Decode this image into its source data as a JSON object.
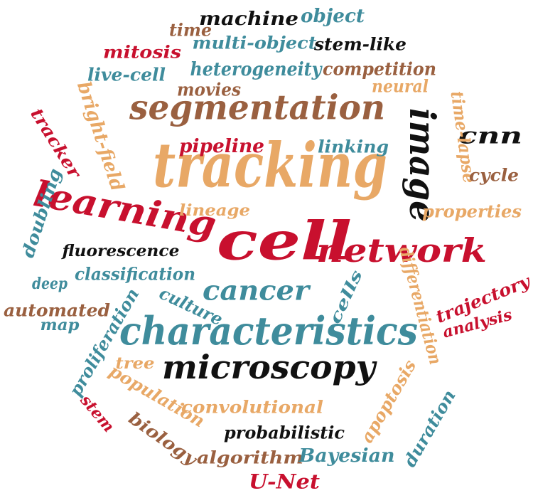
{
  "colors": {
    "red": "#c8102e",
    "blue": "#3f8c9c",
    "orange": "#e8a866",
    "brown": "#9a6040",
    "black": "#111111"
  },
  "words": [
    {
      "text": "tracking",
      "color": "orange"
    },
    {
      "text": "cell",
      "color": "red"
    },
    {
      "text": "segmentation",
      "color": "brown"
    },
    {
      "text": "characteristics",
      "color": "blue"
    },
    {
      "text": "microscopy",
      "color": "black"
    },
    {
      "text": "learning",
      "color": "red"
    },
    {
      "text": "network",
      "color": "red"
    },
    {
      "text": "image",
      "color": "black"
    },
    {
      "text": "cancer",
      "color": "blue"
    },
    {
      "text": "cnn",
      "color": "black"
    },
    {
      "text": "machine",
      "color": "black"
    },
    {
      "text": "object",
      "color": "blue"
    },
    {
      "text": "time",
      "color": "brown"
    },
    {
      "text": "multi-object",
      "color": "blue"
    },
    {
      "text": "stem-like",
      "color": "black"
    },
    {
      "text": "mitosis",
      "color": "red"
    },
    {
      "text": "live-cell",
      "color": "blue"
    },
    {
      "text": "heterogeneity",
      "color": "blue"
    },
    {
      "text": "competition",
      "color": "brown"
    },
    {
      "text": "movies",
      "color": "brown"
    },
    {
      "text": "neural",
      "color": "orange"
    },
    {
      "text": "bright-field",
      "color": "orange"
    },
    {
      "text": "time-lapse",
      "color": "orange"
    },
    {
      "text": "tracker",
      "color": "red"
    },
    {
      "text": "pipeline",
      "color": "red"
    },
    {
      "text": "linking",
      "color": "blue"
    },
    {
      "text": "cycle",
      "color": "brown"
    },
    {
      "text": "doubling",
      "color": "blue"
    },
    {
      "text": "lineage",
      "color": "orange"
    },
    {
      "text": "properties",
      "color": "orange"
    },
    {
      "text": "fluorescence",
      "color": "black"
    },
    {
      "text": "deep",
      "color": "blue"
    },
    {
      "text": "classification",
      "color": "blue"
    },
    {
      "text": "culture",
      "color": "blue"
    },
    {
      "text": "cells",
      "color": "blue"
    },
    {
      "text": "differentiation",
      "color": "orange"
    },
    {
      "text": "trajectory",
      "color": "red"
    },
    {
      "text": "analysis",
      "color": "red"
    },
    {
      "text": "automated",
      "color": "brown"
    },
    {
      "text": "map",
      "color": "blue"
    },
    {
      "text": "proliferation",
      "color": "blue"
    },
    {
      "text": "tree",
      "color": "orange"
    },
    {
      "text": "population",
      "color": "orange"
    },
    {
      "text": "stem",
      "color": "red"
    },
    {
      "text": "convolutional",
      "color": "orange"
    },
    {
      "text": "apoptosis",
      "color": "orange"
    },
    {
      "text": "duration",
      "color": "blue"
    },
    {
      "text": "biology",
      "color": "brown"
    },
    {
      "text": "probabilistic",
      "color": "black"
    },
    {
      "text": "algorithm",
      "color": "brown"
    },
    {
      "text": "Bayesian",
      "color": "blue"
    },
    {
      "text": "U-Net",
      "color": "red"
    }
  ]
}
